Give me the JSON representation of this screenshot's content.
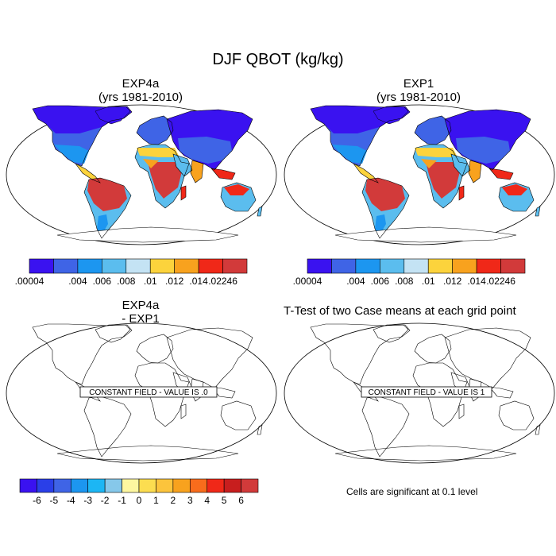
{
  "title": "DJF QBOT (kg/kg)",
  "panels": [
    {
      "title_line1": "EXP4a",
      "title_line2": "(yrs 1981-2010)"
    },
    {
      "title_line1": "EXP1",
      "title_line2": "(yrs 1981-2010)"
    },
    {
      "title_line1": "EXP4a",
      "title_line2": "- EXP1"
    },
    {
      "title_line1": "T-Test of two Case means at each grid point",
      "title_line2": ""
    }
  ],
  "constant_field_labels": [
    "CONSTANT FIELD - VALUE IS .0",
    "CONSTANT FIELD - VALUE IS 1"
  ],
  "significance_note": "Cells are significant at 0.1 level",
  "colorbar_top": {
    "colors": [
      "#3a12f0",
      "#3f64e6",
      "#1c96f0",
      "#5bbdee",
      "#c4e3f4",
      "#fcd33c",
      "#f8a21e",
      "#f02818",
      "#d23a3a"
    ],
    "labels": [
      ".00004",
      ".004",
      ".006",
      ".008",
      ".01",
      ".012",
      ".014",
      ".02246"
    ]
  },
  "colorbar_bottom": {
    "colors": [
      "#3a12f0",
      "#2a3fe8",
      "#3f64e6",
      "#1c96f0",
      "#1cb6f4",
      "#86c8ea",
      "#fdf7a0",
      "#fcdd50",
      "#fcc43c",
      "#f8a21e",
      "#f86c1c",
      "#f02818",
      "#c81e1e",
      "#d23a3a"
    ],
    "labels": [
      "-6",
      "-5",
      "-4",
      "-3",
      "-2",
      "-1",
      "0",
      "1",
      "2",
      "3",
      "4",
      "5",
      "6"
    ]
  },
  "colors": {
    "polar": "#3a12f0",
    "midlat": "#3f64e6",
    "subtropics": "#1c96f0",
    "light": "#5bbdee",
    "pale": "#c4e3f4",
    "yellow": "#fcd33c",
    "orange": "#f8a21e",
    "red": "#f02818",
    "darkred": "#d23a3a"
  }
}
